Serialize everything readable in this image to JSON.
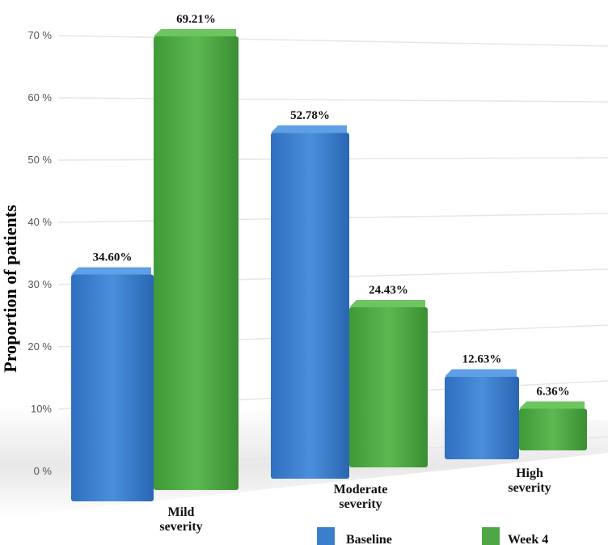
{
  "chart_data": {
    "type": "bar",
    "title": "",
    "xlabel": "",
    "ylabel": "Proportion of patients",
    "ylim": [
      0,
      70
    ],
    "y_ticks": [
      "0 %",
      "10%",
      "20 %",
      "30 %",
      "40 %",
      "50 %",
      "60 %",
      "70 %"
    ],
    "categories": [
      {
        "line1": "Mild",
        "line2": "severity"
      },
      {
        "line1": "Moderate",
        "line2": "severity"
      },
      {
        "line1": "High",
        "line2": "severity"
      }
    ],
    "series": [
      {
        "name": "Baseline",
        "color": "#3a7fcc",
        "values": [
          34.6,
          52.78,
          12.63
        ],
        "labels": [
          "34.60%",
          "52.78%",
          "12.63%"
        ]
      },
      {
        "name": "Week 4",
        "color": "#4ea644",
        "values": [
          69.21,
          24.43,
          6.36
        ],
        "labels": [
          "69.21%",
          "24.43%",
          "6.36%"
        ]
      }
    ],
    "grid": true,
    "legend_position": "bottom-right",
    "style": "3d-perspective"
  }
}
